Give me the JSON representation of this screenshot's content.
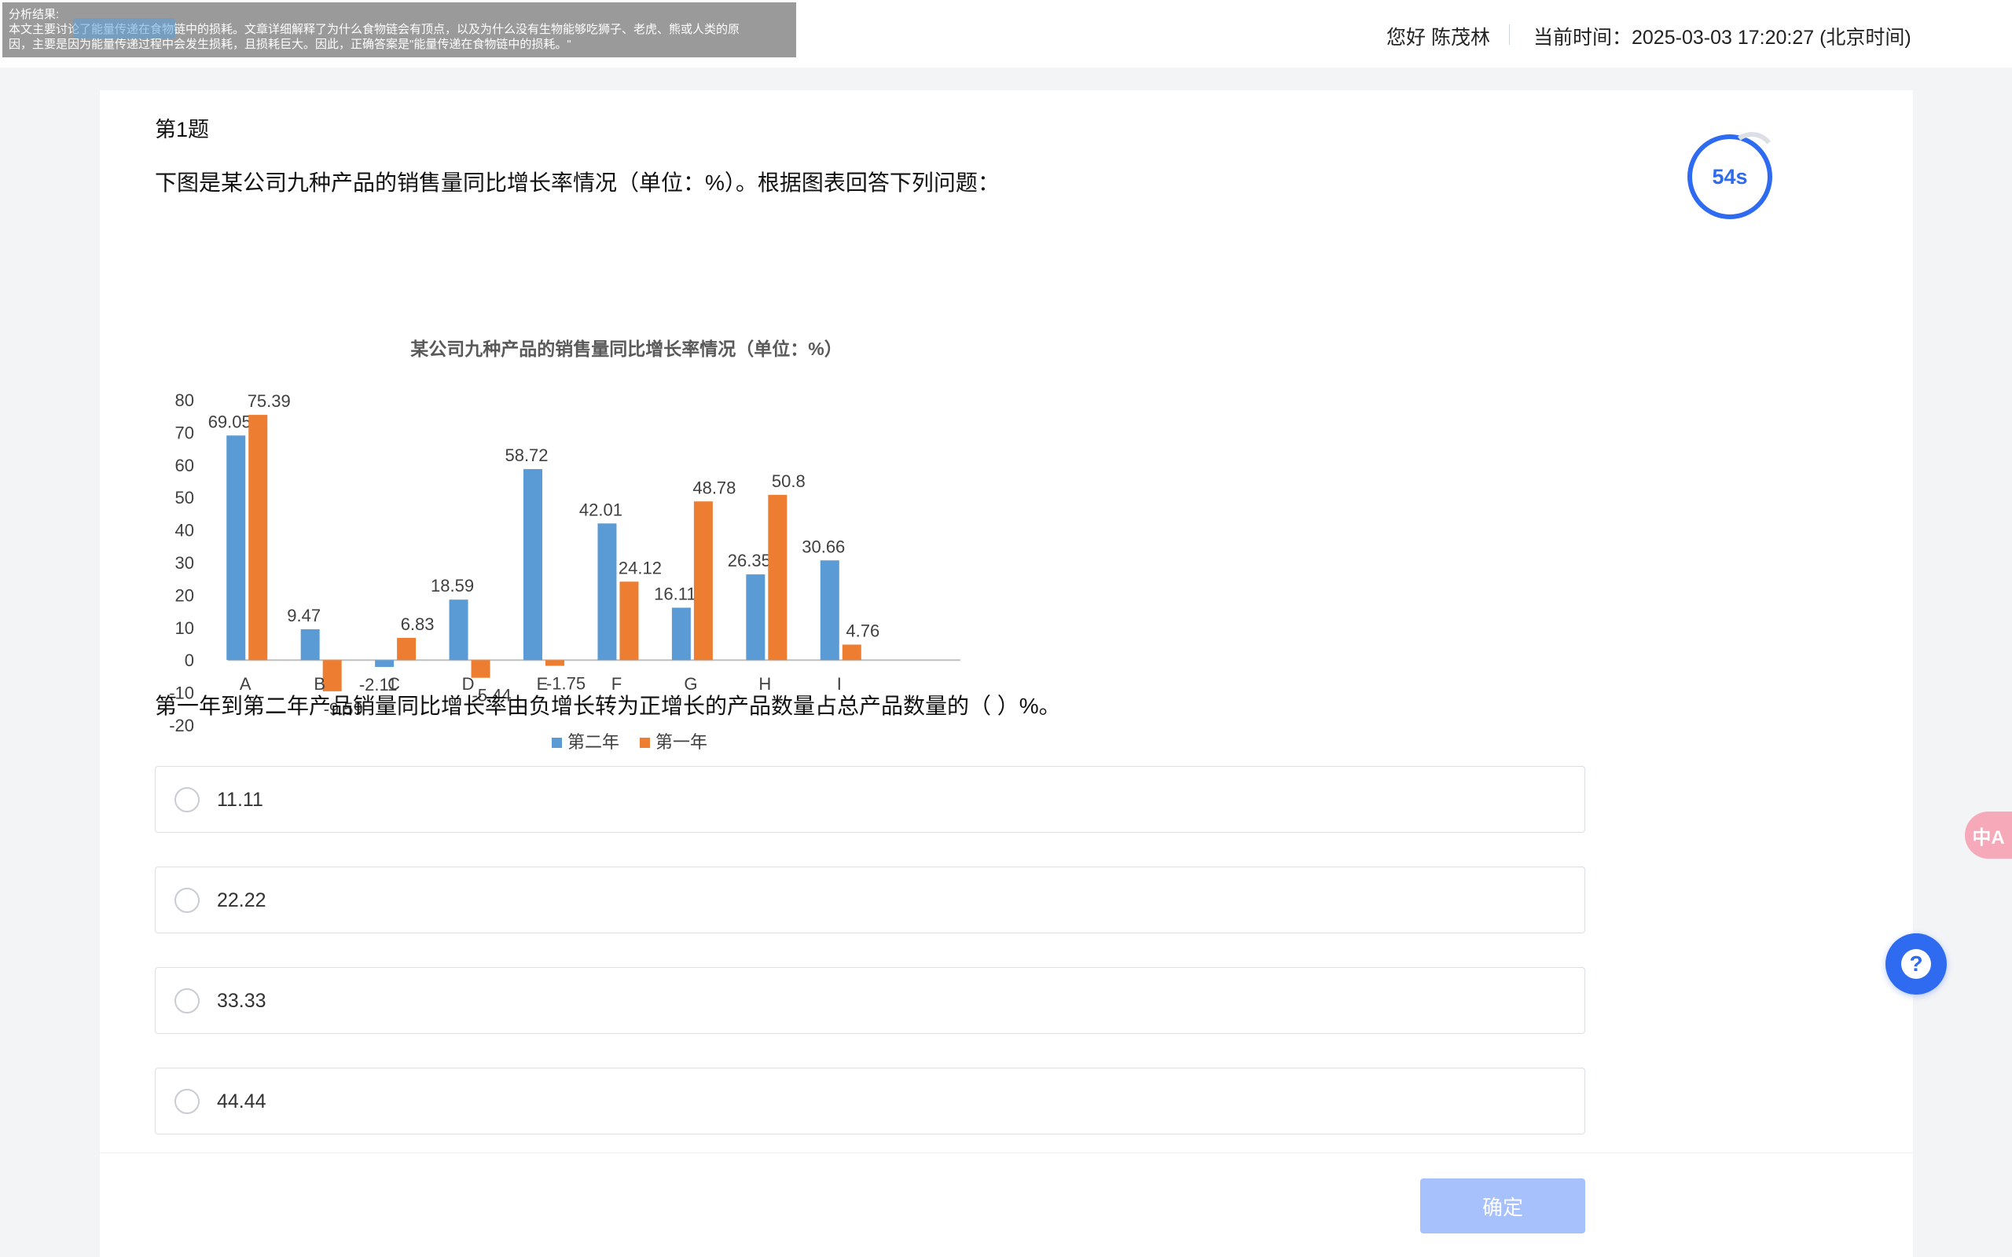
{
  "analysis_overlay": {
    "heading": "分析结果:",
    "line1": "本文主要讨论了能量传递在食物链中的损耗。文章详细解释了为什么食物链会有顶点，以及为什么没有生物能够吃狮子、老虎、熊或人类的原",
    "line2": "因，主要是因为能量传递过程中会发生损耗，且损耗巨大。因此，正确答案是\"能量传递在食物链中的损耗。\""
  },
  "header": {
    "greeting": "您好 陈茂林",
    "time": "当前时间：2025-03-03 17:20:27 (北京时间)"
  },
  "question": {
    "number": "第1题",
    "stem": "下图是某公司九种产品的销售量同比增长率情况（单位：%）。根据图表回答下列问题：",
    "sub_question": "第一年到第二年产品销量同比增长率由负增长转为正增长的产品数量占总产品数量的（ ）%。",
    "timer": "54s"
  },
  "options": [
    {
      "label": "11.11"
    },
    {
      "label": "22.22"
    },
    {
      "label": "33.33"
    },
    {
      "label": "44.44"
    }
  ],
  "confirm_label": "确定",
  "translate_label": "中A",
  "help_label": "?",
  "chart_data": {
    "type": "bar",
    "title": "某公司九种产品的销售量同比增长率情况（单位：%）",
    "categories": [
      "A",
      "B",
      "C",
      "D",
      "E",
      "F",
      "G",
      "H",
      "I"
    ],
    "series": [
      {
        "name": "第二年",
        "color": "#5b9bd5",
        "values": [
          69.05,
          9.47,
          -2.11,
          18.59,
          58.72,
          42.01,
          16.11,
          26.35,
          30.66
        ]
      },
      {
        "name": "第一年",
        "color": "#ed7d31",
        "values": [
          75.39,
          -9.59,
          6.83,
          -5.44,
          -1.75,
          24.12,
          48.78,
          50.8,
          4.76
        ]
      }
    ],
    "yticks": [
      80,
      70,
      60,
      50,
      40,
      30,
      20,
      10,
      0,
      -10,
      -20
    ],
    "ylim": [
      -20,
      80
    ],
    "legend": "bottom",
    "grid": false
  }
}
